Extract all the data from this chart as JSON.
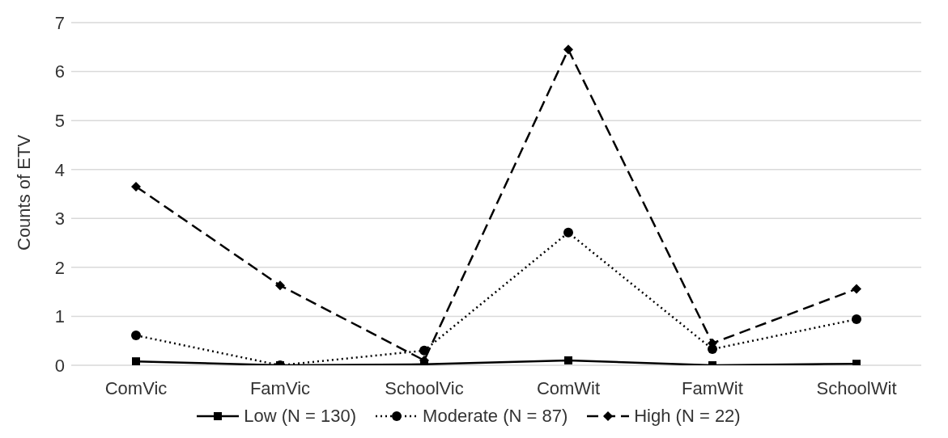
{
  "chart_data": {
    "type": "line",
    "ylabel": "Counts of ETV",
    "categories": [
      "ComVic",
      "FamVic",
      "SchoolVic",
      "ComWit",
      "FamWit",
      "SchoolWit"
    ],
    "series": [
      {
        "name": "Low (N = 130)",
        "color": "#000000",
        "marker": "square",
        "line_style": "solid",
        "values": [
          0.08,
          0.0,
          0.02,
          0.1,
          0.0,
          0.03
        ]
      },
      {
        "name": "Moderate (N = 87)",
        "color": "#000000",
        "marker": "circle",
        "line_style": "dotted",
        "values": [
          0.61,
          0.0,
          0.3,
          2.71,
          0.33,
          0.94
        ]
      },
      {
        "name": "High (N = 22)",
        "color": "#000000",
        "marker": "diamond",
        "line_style": "dashed",
        "values": [
          3.65,
          1.63,
          0.1,
          6.45,
          0.45,
          1.56
        ]
      }
    ],
    "ylim": [
      0,
      7
    ],
    "yticks": [
      0,
      1,
      2,
      3,
      4,
      5,
      6,
      7
    ],
    "grid": "y",
    "legend": "bottom"
  }
}
